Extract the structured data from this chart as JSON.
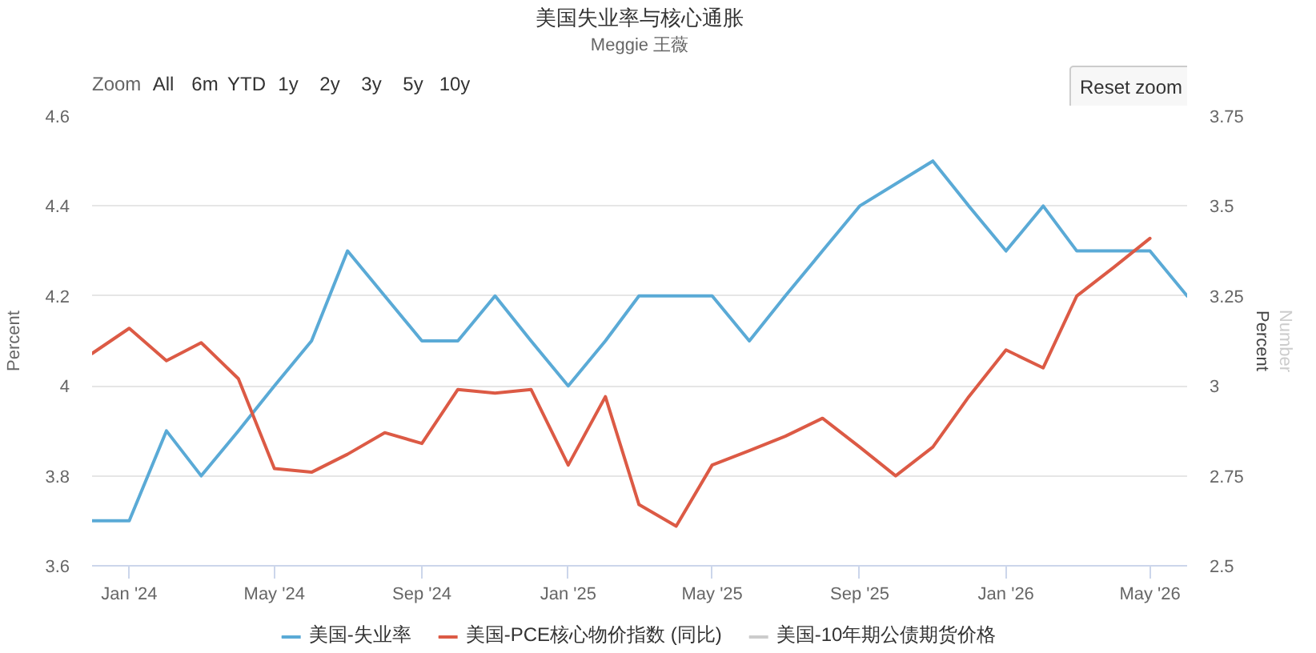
{
  "chart_data": {
    "type": "line",
    "title": "美国失业率与核心通胀",
    "subtitle": "Meggie 王薇",
    "ylabel": "Percent",
    "y2label": "Percent",
    "y3label": "Number",
    "x": [
      "2023-12",
      "2024-01",
      "2024-02",
      "2024-03",
      "2024-04",
      "2024-05",
      "2024-06",
      "2024-07",
      "2024-08",
      "2024-09",
      "2024-10",
      "2024-11",
      "2024-12",
      "2025-01",
      "2025-02",
      "2025-03",
      "2025-04",
      "2025-05",
      "2025-06",
      "2025-07",
      "2025-08",
      "2025-09",
      "2025-10",
      "2025-11",
      "2025-12",
      "2026-01",
      "2026-02",
      "2026-03",
      "2026-04",
      "2026-05"
    ],
    "series": [
      {
        "name": "美国-失业率",
        "color": "#5aaad6",
        "x": [
          "2023-12",
          "2024-01",
          "2024-02",
          "2024-03",
          "2024-04",
          "2024-05",
          "2024-06",
          "2024-07",
          "2024-08",
          "2024-09",
          "2024-10",
          "2024-11",
          "2024-12",
          "2025-01",
          "2025-02",
          "2025-03",
          "2025-04",
          "2025-05",
          "2025-06",
          "2025-07",
          "2025-08",
          "2025-09",
          "2025-11",
          "2025-12",
          "2026-01",
          "2026-02",
          "2026-03",
          "2026-04",
          "2026-05",
          "2026-06"
        ],
        "values": [
          3.7,
          3.7,
          3.9,
          3.8,
          3.9,
          4.0,
          4.1,
          4.3,
          4.2,
          4.1,
          4.1,
          4.2,
          4.1,
          4.0,
          4.1,
          4.2,
          4.2,
          4.2,
          4.1,
          4.2,
          4.3,
          4.4,
          4.5,
          4.4,
          4.3,
          4.4,
          4.3,
          4.3,
          4.3,
          4.2
        ]
      },
      {
        "name": "美国-PCE核心物价指数 (同比)",
        "color": "#dc5a45",
        "axis": "y2",
        "values": [
          3.09,
          3.16,
          3.07,
          3.12,
          3.02,
          2.77,
          2.76,
          2.81,
          2.87,
          2.84,
          2.99,
          2.98,
          2.99,
          2.78,
          2.97,
          2.67,
          2.61,
          2.78,
          2.82,
          2.86,
          2.91,
          2.83,
          2.75,
          2.83,
          2.97,
          3.1,
          3.05,
          3.25,
          3.33,
          3.41
        ]
      },
      {
        "name": "美国-10年期公债期货价格",
        "color": "#cccccc",
        "values": [
          null,
          null,
          null,
          null,
          null,
          null,
          null,
          null,
          null,
          null,
          null,
          null,
          null,
          null,
          null,
          null,
          null,
          null,
          null,
          null,
          null,
          null,
          null,
          null,
          null,
          null,
          null,
          null,
          null,
          null
        ]
      }
    ],
    "xlim": [
      "2023-12",
      "2026-06"
    ],
    "xticks": [
      {
        "value": "2024-01",
        "label": "Jan '24"
      },
      {
        "value": "2024-05",
        "label": "May '24"
      },
      {
        "value": "2024-09",
        "label": "Sep '24"
      },
      {
        "value": "2025-01",
        "label": "Jan '25"
      },
      {
        "value": "2025-05",
        "label": "May '25"
      },
      {
        "value": "2025-09",
        "label": "Sep '25"
      },
      {
        "value": "2026-01",
        "label": "Jan '26"
      },
      {
        "value": "2026-05",
        "label": "May '26"
      }
    ],
    "ylim": [
      3.6,
      4.6
    ],
    "yticks": [
      3.6,
      3.8,
      4,
      4.2,
      4.4,
      4.6
    ],
    "y2lim": [
      2.5,
      3.75
    ],
    "y2ticks": [
      2.5,
      2.75,
      3,
      3.25,
      3.5,
      3.75
    ],
    "grid": "y",
    "legend": "bottom",
    "annotations": [
      "Zoom",
      "All",
      "6m",
      "YTD",
      "1y",
      "2y",
      "3y",
      "5y",
      "10y",
      "Reset zoom"
    ]
  }
}
